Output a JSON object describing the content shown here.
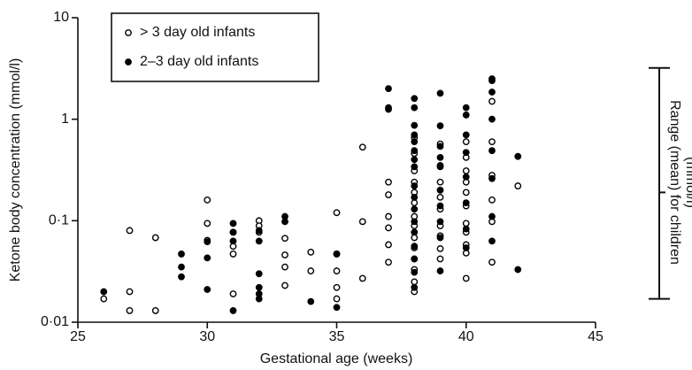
{
  "chart_data": {
    "type": "scatter",
    "xlabel": "Gestational age (weeks)",
    "ylabel": "Ketone body concentration (mmol/l)",
    "xlim": [
      25,
      45
    ],
    "xticks": [
      25,
      30,
      35,
      40,
      45
    ],
    "ylim": [
      0.01,
      10
    ],
    "yticks": [
      {
        "value": 0.01,
        "label": "0·01"
      },
      {
        "value": 0.1,
        "label": "0·1"
      },
      1,
      10
    ],
    "yscale": "log",
    "grid": false,
    "legend": "upper left",
    "series": [
      {
        "name": "> 3 day old infants",
        "color": "#000000",
        "marker": "open",
        "x": [
          26,
          27,
          27,
          27,
          28,
          28,
          30,
          30,
          30,
          31,
          31,
          31,
          31,
          32,
          32,
          32,
          33,
          33,
          33,
          33,
          34,
          34,
          35,
          35,
          35,
          35,
          35,
          36,
          36,
          36,
          37,
          37,
          37,
          37,
          37,
          37,
          38,
          38,
          38,
          38,
          38,
          38,
          38,
          38,
          38,
          38,
          38,
          38,
          38,
          38,
          39,
          39,
          39,
          39,
          39,
          39,
          39,
          39,
          39,
          40,
          40,
          40,
          40,
          40,
          40,
          40,
          40,
          40,
          40,
          40,
          41,
          41,
          41,
          41,
          41,
          41,
          42
        ],
        "values": [
          0.017,
          0.08,
          0.02,
          0.013,
          0.068,
          0.013,
          0.16,
          0.094,
          0.064,
          0.077,
          0.056,
          0.047,
          0.019,
          0.1,
          0.089,
          0.077,
          0.067,
          0.046,
          0.035,
          0.023,
          0.049,
          0.032,
          0.12,
          0.047,
          0.032,
          0.022,
          0.017,
          0.53,
          0.098,
          0.027,
          0.24,
          0.18,
          0.11,
          0.085,
          0.058,
          0.039,
          0.66,
          0.46,
          0.31,
          0.24,
          0.19,
          0.15,
          0.11,
          0.089,
          0.068,
          0.054,
          0.042,
          0.033,
          0.025,
          0.02,
          0.57,
          0.35,
          0.24,
          0.17,
          0.13,
          0.089,
          0.071,
          0.053,
          0.042,
          0.6,
          0.42,
          0.31,
          0.24,
          0.19,
          0.14,
          0.094,
          0.077,
          0.058,
          0.048,
          0.027,
          1.5,
          0.6,
          0.28,
          0.16,
          0.098,
          0.039,
          0.22
        ]
      },
      {
        "name": "2–3 day old infants",
        "color": "#000000",
        "marker": "filled",
        "x": [
          26,
          29,
          29,
          29,
          30,
          30,
          30,
          31,
          31,
          31,
          31,
          32,
          32,
          32,
          32,
          32,
          32,
          33,
          33,
          34,
          35,
          35,
          37,
          37,
          37,
          38,
          38,
          38,
          38,
          38,
          38,
          38,
          38,
          38,
          38,
          38,
          38,
          38,
          38,
          38,
          38,
          38,
          39,
          39,
          39,
          39,
          39,
          39,
          39,
          39,
          39,
          39,
          40,
          40,
          40,
          40,
          40,
          40,
          40,
          40,
          41,
          41,
          41,
          41,
          41,
          41,
          41,
          41,
          42,
          42
        ],
        "values": [
          0.02,
          0.047,
          0.035,
          0.028,
          0.062,
          0.043,
          0.021,
          0.094,
          0.077,
          0.063,
          0.013,
          0.08,
          0.063,
          0.03,
          0.022,
          0.019,
          0.017,
          0.11,
          0.098,
          0.016,
          0.047,
          0.014,
          2.0,
          1.3,
          1.25,
          1.6,
          1.3,
          0.87,
          0.7,
          0.6,
          0.49,
          0.4,
          0.34,
          0.22,
          0.17,
          0.13,
          0.098,
          0.077,
          0.056,
          0.042,
          0.031,
          0.022,
          1.8,
          0.86,
          0.54,
          0.42,
          0.34,
          0.2,
          0.14,
          0.098,
          0.068,
          0.032,
          1.3,
          1.1,
          0.7,
          0.47,
          0.27,
          0.15,
          0.083,
          0.054,
          2.5,
          2.4,
          1.85,
          1.0,
          0.49,
          0.26,
          0.11,
          0.063,
          0.43,
          0.033
        ]
      }
    ],
    "reference_range": {
      "label_lines": [
        "Range (mean) for children",
        "(mmol/l)"
      ],
      "min": 0.017,
      "mean": 0.19,
      "max": 3.2
    }
  }
}
